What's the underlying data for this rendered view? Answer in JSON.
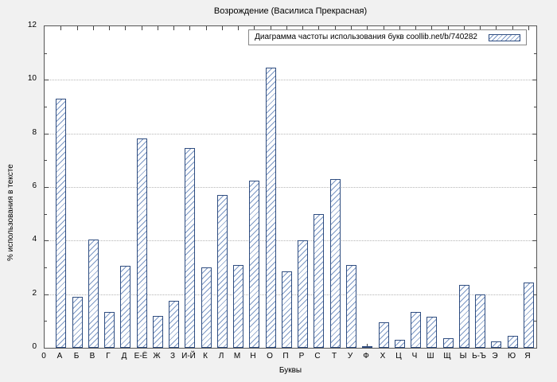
{
  "chart_data": {
    "type": "bar",
    "title": "Возрождение (Василиса Прекрасная)",
    "legend": "Диаграмма частоты использования букв coollib.net/b/740282",
    "legend_position": "top-right",
    "xlabel": "Буквы",
    "ylabel": "% использования в тексте",
    "origin_tick_label": "0",
    "ylim": [
      0,
      12
    ],
    "ytick_step": 2,
    "grid": true,
    "categories": [
      "А",
      "Б",
      "В",
      "Г",
      "Д",
      "Е-Ё",
      "Ж",
      "З",
      "И-Й",
      "К",
      "Л",
      "М",
      "Н",
      "О",
      "П",
      "Р",
      "С",
      "Т",
      "У",
      "Ф",
      "Х",
      "Ц",
      "Ч",
      "Ш",
      "Щ",
      "Ы",
      "Ь-Ъ",
      "Э",
      "Ю",
      "Я"
    ],
    "values": [
      9.3,
      1.9,
      4.05,
      1.35,
      3.05,
      7.8,
      1.2,
      1.75,
      7.45,
      3.0,
      5.7,
      3.1,
      6.25,
      10.45,
      2.85,
      4.0,
      5.0,
      6.3,
      3.1,
      0.05,
      0.95,
      0.3,
      1.35,
      1.15,
      0.35,
      2.35,
      2.0,
      0.25,
      0.45,
      2.45
    ],
    "colors": {
      "bar_border": "#2f4d80",
      "bar_hatch": "#7b97c4",
      "bar_fill": "#ffffff",
      "background": "#f1f1f1",
      "plot_background": "#ffffff",
      "grid": "#b5b5b5"
    }
  }
}
